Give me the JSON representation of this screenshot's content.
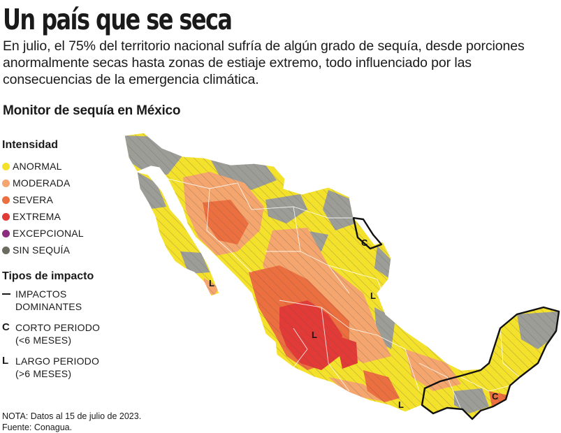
{
  "title": "Un país que se seca",
  "intro": "En julio, el 75% del territorio nacional sufría de algún grado de sequía, desde porciones anormalmente secas hasta zonas de estiaje extremo, todo influenciado por las consecuencias de la emergencia climática.",
  "subtitle": "Monitor de sequía en México",
  "legend": {
    "title": "Intensidad",
    "items": [
      {
        "label": "ANORMAL",
        "color": "#f4e12c"
      },
      {
        "label": "MODERADA",
        "color": "#f4a66e"
      },
      {
        "label": "SEVERA",
        "color": "#ec6f3f"
      },
      {
        "label": "EXTREMA",
        "color": "#e23a37"
      },
      {
        "label": "EXCEPCIONAL",
        "color": "#8b2d7e"
      },
      {
        "label": "SIN SEQUÍA",
        "color": "#6b6b5f"
      }
    ]
  },
  "impacts": {
    "title": "Tipos de impacto",
    "items": [
      {
        "key": "",
        "label": "IMPACTOS DOMINANTES"
      },
      {
        "key": "C",
        "label": "CORTO PERIODO (<6 MESES)"
      },
      {
        "key": "L",
        "label": "LARGO PERIODO (>6 MESES)"
      }
    ]
  },
  "map_labels": [
    {
      "letter": "L",
      "region": "Baja California Sur"
    },
    {
      "letter": "C",
      "region": "Tamaulipas norte"
    },
    {
      "letter": "L",
      "region": "San Luis Potosí / Veracruz"
    },
    {
      "letter": "L",
      "region": "Jalisco / Michoacán"
    },
    {
      "letter": "L",
      "region": "Guerrero / Oaxaca"
    },
    {
      "letter": "C",
      "region": "Tabasco / Campeche"
    }
  ],
  "footer": {
    "note": "NOTA: Datos al 15 de julio de 2023.",
    "source": "Fuente: Conagua."
  },
  "map_colors": {
    "anormal": "#f4e12c",
    "moderada": "#f4a66e",
    "severa": "#ec6f3f",
    "extrema": "#e23a37",
    "sin_sequia": "#9d9d98"
  }
}
